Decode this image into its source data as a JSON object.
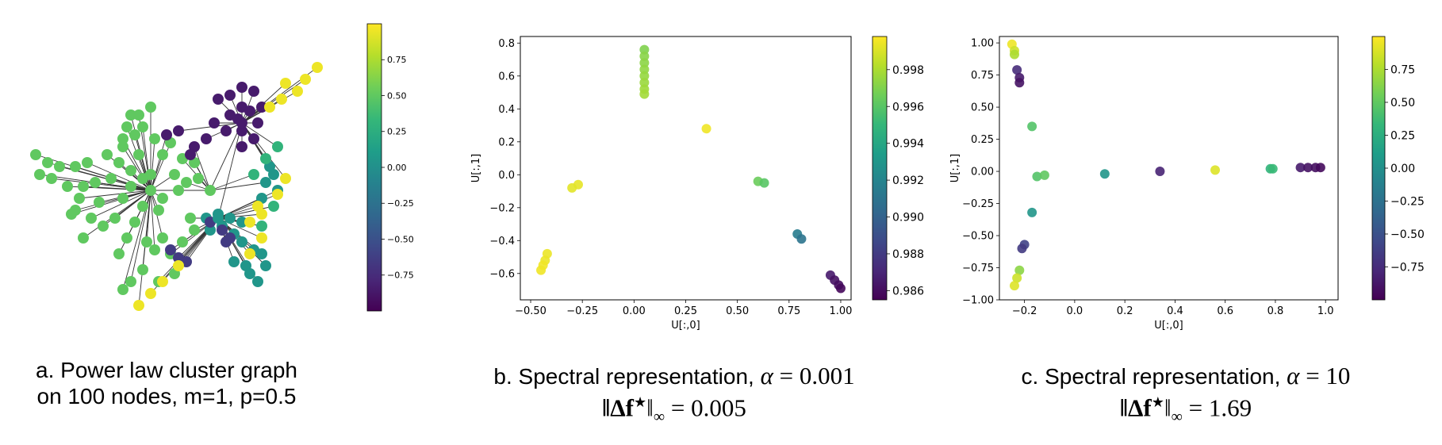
{
  "colorscale": [
    "#440154",
    "#482878",
    "#3e4989",
    "#31688e",
    "#26828e",
    "#1f9e89",
    "#35b779",
    "#6ece58",
    "#b5de2b",
    "#fde725"
  ],
  "chart_data": [
    {
      "id": "a",
      "type": "network",
      "colorbar": {
        "min": -1,
        "max": 1,
        "ticks": [
          0.75,
          0.5,
          0.25,
          0.0,
          -0.25,
          -0.5,
          -0.75
        ],
        "tick_labels": [
          "0.75",
          "0.50",
          "0.25",
          "0.00",
          "−0.25",
          "−0.50",
          "−0.75"
        ]
      },
      "caption": {
        "line1": "a. Power law cluster graph",
        "line2": "on 100 nodes, m=1, p=0.5"
      }
    },
    {
      "id": "b",
      "type": "scatter",
      "xlabel": "U[:,0]",
      "ylabel": "U[:,1]",
      "xlim": [
        -0.55,
        1.05
      ],
      "ylim": [
        -0.76,
        0.84
      ],
      "xticks": [
        -0.5,
        -0.25,
        0.0,
        0.25,
        0.5,
        0.75,
        1.0
      ],
      "xtick_labels": [
        "−0.50",
        "−0.25",
        "0.00",
        "0.25",
        "0.50",
        "0.75",
        "1.00"
      ],
      "yticks": [
        -0.6,
        -0.4,
        -0.2,
        0.0,
        0.2,
        0.4,
        0.6,
        0.8
      ],
      "ytick_labels": [
        "−0.6",
        "−0.4",
        "−0.2",
        "0.0",
        "0.2",
        "0.4",
        "0.6",
        "0.8"
      ],
      "colorbar": {
        "min": 0.9855,
        "max": 0.9998,
        "ticks": [
          0.998,
          0.996,
          0.994,
          0.992,
          0.99,
          0.988,
          0.986
        ],
        "tick_labels": [
          "0.998",
          "0.996",
          "0.994",
          "0.992",
          "0.990",
          "0.988",
          "0.986"
        ]
      },
      "points": [
        {
          "x": 0.05,
          "y": 0.76,
          "c": 0.997
        },
        {
          "x": 0.05,
          "y": 0.72,
          "c": 0.9972
        },
        {
          "x": 0.05,
          "y": 0.68,
          "c": 0.9973
        },
        {
          "x": 0.05,
          "y": 0.64,
          "c": 0.9974
        },
        {
          "x": 0.05,
          "y": 0.6,
          "c": 0.9975
        },
        {
          "x": 0.05,
          "y": 0.56,
          "c": 0.9976
        },
        {
          "x": 0.05,
          "y": 0.52,
          "c": 0.9977
        },
        {
          "x": 0.05,
          "y": 0.49,
          "c": 0.9978
        },
        {
          "x": 0.35,
          "y": 0.28,
          "c": 0.9995
        },
        {
          "x": -0.27,
          "y": -0.06,
          "c": 0.9993
        },
        {
          "x": -0.3,
          "y": -0.08,
          "c": 0.9992
        },
        {
          "x": 0.6,
          "y": -0.04,
          "c": 0.9965
        },
        {
          "x": 0.63,
          "y": -0.05,
          "c": 0.996
        },
        {
          "x": -0.42,
          "y": -0.48,
          "c": 0.9994
        },
        {
          "x": -0.43,
          "y": -0.52,
          "c": 0.9994
        },
        {
          "x": -0.44,
          "y": -0.55,
          "c": 0.9995
        },
        {
          "x": -0.45,
          "y": -0.58,
          "c": 0.9995
        },
        {
          "x": 0.79,
          "y": -0.36,
          "c": 0.9915
        },
        {
          "x": 0.81,
          "y": -0.39,
          "c": 0.991
        },
        {
          "x": 0.95,
          "y": -0.61,
          "c": 0.9865
        },
        {
          "x": 0.97,
          "y": -0.64,
          "c": 0.9862
        },
        {
          "x": 0.99,
          "y": -0.67,
          "c": 0.986
        },
        {
          "x": 1.0,
          "y": -0.69,
          "c": 0.9858
        }
      ],
      "caption": {
        "line1_text": "b. Spectral representation, ",
        "line1_var": "α",
        "line1_val": " = 0.001",
        "line2_expr": "‖Δf",
        "line2_star": "★",
        "line2_close": "‖",
        "line2_sub": "∞",
        "line2_val": " = 0.005"
      }
    },
    {
      "id": "c",
      "type": "scatter",
      "xlabel": "U[:,0]",
      "ylabel": "U[:,1]",
      "xlim": [
        -0.3,
        1.05
      ],
      "ylim": [
        -1.0,
        1.05
      ],
      "xticks": [
        -0.2,
        0.0,
        0.2,
        0.4,
        0.6,
        0.8,
        1.0
      ],
      "xtick_labels": [
        "−0.2",
        "0.0",
        "0.2",
        "0.4",
        "0.6",
        "0.8",
        "1.0"
      ],
      "yticks": [
        -1.0,
        -0.75,
        -0.5,
        -0.25,
        0.0,
        0.25,
        0.5,
        0.75,
        1.0
      ],
      "ytick_labels": [
        "−1.00",
        "−0.75",
        "−0.50",
        "−0.25",
        "0.00",
        "0.25",
        "0.50",
        "0.75",
        "1.00"
      ],
      "colorbar": {
        "min": -1,
        "max": 1,
        "ticks": [
          0.75,
          0.5,
          0.25,
          0.0,
          -0.25,
          -0.5,
          -0.75
        ],
        "tick_labels": [
          "0.75",
          "0.50",
          "0.25",
          "0.00",
          "−0.25",
          "−0.50",
          "−0.75"
        ]
      },
      "points": [
        {
          "x": -0.25,
          "y": 0.99,
          "c": 0.95
        },
        {
          "x": -0.24,
          "y": 0.94,
          "c": 0.85
        },
        {
          "x": -0.24,
          "y": 0.91,
          "c": 0.75
        },
        {
          "x": -0.23,
          "y": 0.79,
          "c": -0.75
        },
        {
          "x": -0.22,
          "y": 0.73,
          "c": -0.85
        },
        {
          "x": -0.22,
          "y": 0.69,
          "c": -0.9
        },
        {
          "x": -0.17,
          "y": 0.35,
          "c": 0.45
        },
        {
          "x": -0.15,
          "y": -0.04,
          "c": 0.45
        },
        {
          "x": -0.12,
          "y": -0.03,
          "c": 0.5
        },
        {
          "x": 0.12,
          "y": -0.02,
          "c": 0.05
        },
        {
          "x": 0.34,
          "y": 0.0,
          "c": -0.8
        },
        {
          "x": 0.56,
          "y": 0.01,
          "c": 0.9
        },
        {
          "x": 0.78,
          "y": 0.02,
          "c": 0.3
        },
        {
          "x": 0.79,
          "y": 0.02,
          "c": 0.35
        },
        {
          "x": 0.9,
          "y": 0.03,
          "c": -0.85
        },
        {
          "x": 0.93,
          "y": 0.03,
          "c": -0.9
        },
        {
          "x": 0.96,
          "y": 0.03,
          "c": -0.92
        },
        {
          "x": 0.98,
          "y": 0.03,
          "c": -0.95
        },
        {
          "x": -0.17,
          "y": -0.32,
          "c": 0.05
        },
        {
          "x": -0.2,
          "y": -0.57,
          "c": -0.6
        },
        {
          "x": -0.21,
          "y": -0.6,
          "c": -0.65
        },
        {
          "x": -0.22,
          "y": -0.77,
          "c": 0.65
        },
        {
          "x": -0.23,
          "y": -0.83,
          "c": 0.85
        },
        {
          "x": -0.24,
          "y": -0.89,
          "c": 0.9
        }
      ],
      "caption": {
        "line1_text": "c. Spectral representation, ",
        "line1_var": "α",
        "line1_val": " = 10",
        "line2_expr": "‖Δf",
        "line2_star": "★",
        "line2_close": "‖",
        "line2_sub": "∞",
        "line2_val": " = 1.69"
      }
    }
  ]
}
